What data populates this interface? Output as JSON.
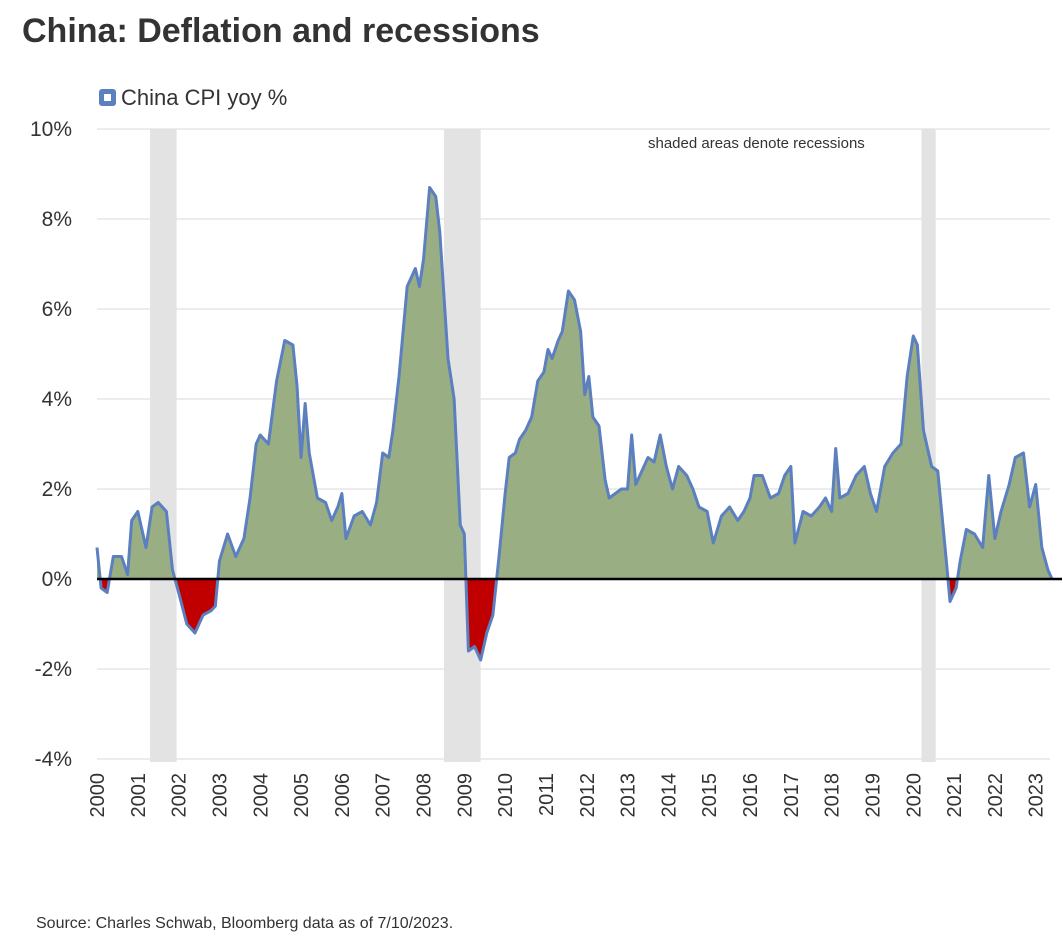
{
  "chart_data": {
    "type": "area",
    "title": "China: Deflation and recessions",
    "annotation": "shaded areas denote recessions",
    "source": "Source: Charles Schwab, Bloomberg data as of 7/10/2023.",
    "x": [
      2000.0,
      2000.1,
      2000.25,
      2000.4,
      2000.6,
      2000.75,
      2000.85,
      2001.0,
      2001.2,
      2001.35,
      2001.5,
      2001.7,
      2001.85,
      2002.0,
      2002.2,
      2002.4,
      2002.6,
      2002.8,
      2002.9,
      2003.0,
      2003.2,
      2003.4,
      2003.6,
      2003.75,
      2003.9,
      2004.0,
      2004.2,
      2004.4,
      2004.6,
      2004.8,
      2004.9,
      2005.0,
      2005.1,
      2005.2,
      2005.4,
      2005.6,
      2005.75,
      2005.9,
      2006.0,
      2006.1,
      2006.3,
      2006.5,
      2006.7,
      2006.85,
      2007.0,
      2007.15,
      2007.25,
      2007.4,
      2007.6,
      2007.8,
      2007.9,
      2008.0,
      2008.15,
      2008.3,
      2008.4,
      2008.5,
      2008.6,
      2008.75,
      2008.9,
      2009.0,
      2009.1,
      2009.25,
      2009.4,
      2009.55,
      2009.7,
      2009.85,
      2010.0,
      2010.1,
      2010.25,
      2010.35,
      2010.5,
      2010.65,
      2010.8,
      2010.95,
      2011.05,
      2011.15,
      2011.3,
      2011.4,
      2011.55,
      2011.7,
      2011.85,
      2011.95,
      2012.05,
      2012.15,
      2012.3,
      2012.45,
      2012.55,
      2012.7,
      2012.85,
      2013.0,
      2013.1,
      2013.2,
      2013.35,
      2013.5,
      2013.65,
      2013.8,
      2013.95,
      2014.1,
      2014.25,
      2014.45,
      2014.6,
      2014.75,
      2014.95,
      2015.1,
      2015.3,
      2015.5,
      2015.7,
      2015.85,
      2016.0,
      2016.1,
      2016.3,
      2016.5,
      2016.7,
      2016.85,
      2017.0,
      2017.1,
      2017.3,
      2017.5,
      2017.7,
      2017.85,
      2018.0,
      2018.1,
      2018.2,
      2018.4,
      2018.6,
      2018.8,
      2018.95,
      2019.1,
      2019.3,
      2019.5,
      2019.7,
      2019.85,
      2020.0,
      2020.1,
      2020.25,
      2020.45,
      2020.6,
      2020.8,
      2020.9,
      2021.05,
      2021.15,
      2021.3,
      2021.5,
      2021.7,
      2021.85,
      2022.0,
      2022.15,
      2022.35,
      2022.5,
      2022.7,
      2022.85,
      2023.0,
      2023.15,
      2023.3,
      2023.4
    ],
    "series": [
      {
        "name": "China CPI yoy %",
        "color": "#5b7fbf",
        "fill_positive": "#9aae84",
        "fill_negative": "#c00000",
        "values": [
          0.7,
          -0.2,
          -0.3,
          0.5,
          0.5,
          0.1,
          1.3,
          1.5,
          0.7,
          1.6,
          1.7,
          1.5,
          0.2,
          -0.3,
          -1.0,
          -1.2,
          -0.8,
          -0.7,
          -0.6,
          0.4,
          1.0,
          0.5,
          0.9,
          1.8,
          3.0,
          3.2,
          3.0,
          4.4,
          5.3,
          5.2,
          4.3,
          2.7,
          3.9,
          2.8,
          1.8,
          1.7,
          1.3,
          1.6,
          1.9,
          0.9,
          1.4,
          1.5,
          1.2,
          1.7,
          2.8,
          2.7,
          3.3,
          4.5,
          6.5,
          6.9,
          6.5,
          7.1,
          8.7,
          8.5,
          7.7,
          6.3,
          4.9,
          4.0,
          1.2,
          1.0,
          -1.6,
          -1.5,
          -1.8,
          -1.2,
          -0.8,
          0.5,
          1.9,
          2.7,
          2.8,
          3.1,
          3.3,
          3.6,
          4.4,
          4.6,
          5.1,
          4.9,
          5.3,
          5.5,
          6.4,
          6.2,
          5.5,
          4.1,
          4.5,
          3.6,
          3.4,
          2.2,
          1.8,
          1.9,
          2.0,
          2.0,
          3.2,
          2.1,
          2.4,
          2.7,
          2.6,
          3.2,
          2.5,
          2.0,
          2.5,
          2.3,
          2.0,
          1.6,
          1.5,
          0.8,
          1.4,
          1.6,
          1.3,
          1.5,
          1.8,
          2.3,
          2.3,
          1.8,
          1.9,
          2.3,
          2.5,
          0.8,
          1.5,
          1.4,
          1.6,
          1.8,
          1.5,
          2.9,
          1.8,
          1.9,
          2.3,
          2.5,
          1.9,
          1.5,
          2.5,
          2.8,
          3.0,
          4.5,
          5.4,
          5.2,
          3.3,
          2.5,
          2.4,
          0.5,
          -0.5,
          -0.2,
          0.4,
          1.1,
          1.0,
          0.7,
          2.3,
          0.9,
          1.5,
          2.1,
          2.7,
          2.8,
          1.6,
          2.1,
          0.7,
          0.2,
          0.0
        ]
      }
    ],
    "recessions": [
      [
        2001.3,
        2001.95
      ],
      [
        2008.5,
        2009.4
      ],
      [
        2020.2,
        2020.55
      ]
    ],
    "recession_color": "#e3e3e3",
    "xlim": [
      2000,
      2023.35
    ],
    "xticks": [
      2000,
      2001,
      2002,
      2003,
      2004,
      2005,
      2006,
      2007,
      2008,
      2009,
      2010,
      2011,
      2012,
      2013,
      2014,
      2015,
      2016,
      2017,
      2018,
      2019,
      2020,
      2021,
      2022,
      2023
    ],
    "ylim": [
      -4,
      10
    ],
    "yticks": [
      {
        "value": -4,
        "label": "-4%"
      },
      {
        "value": -2,
        "label": "-2%"
      },
      {
        "value": 0,
        "label": "0%"
      },
      {
        "value": 2,
        "label": "2%"
      },
      {
        "value": 4,
        "label": "4%"
      },
      {
        "value": 6,
        "label": "6%"
      },
      {
        "value": 8,
        "label": "8%"
      },
      {
        "value": 10,
        "label": "10%"
      }
    ],
    "grid": true
  }
}
